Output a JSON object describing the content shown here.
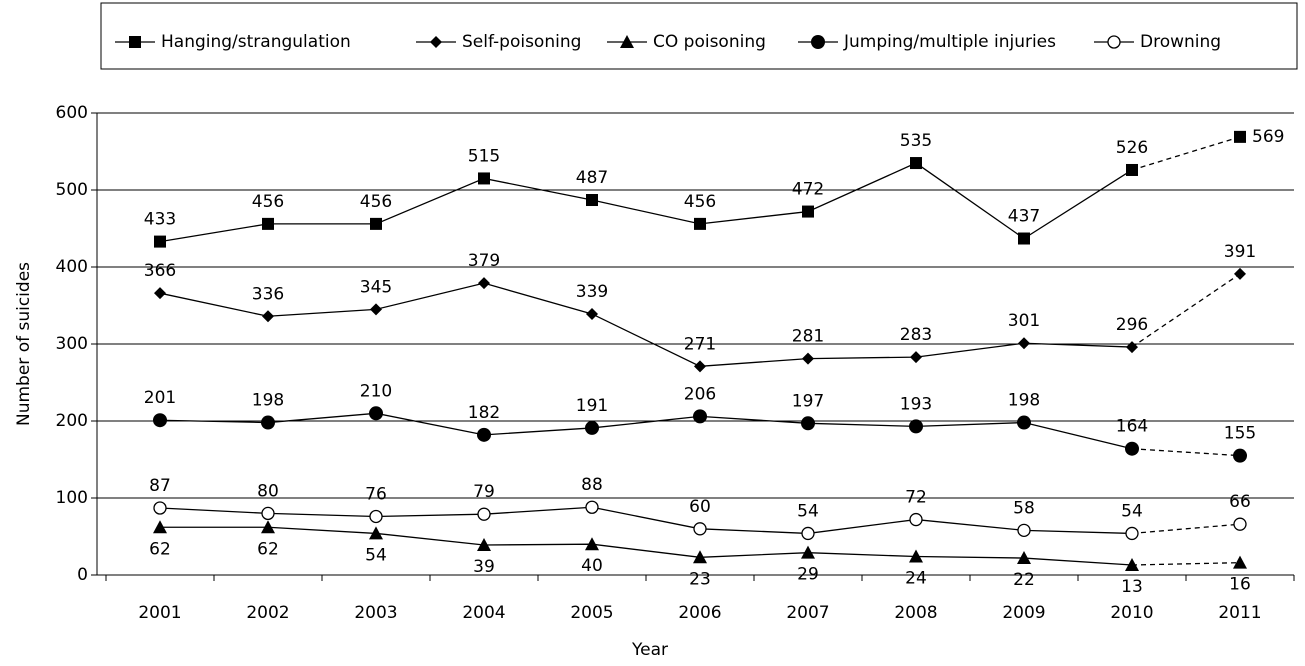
{
  "chart_data": {
    "type": "line",
    "x_label": "Year",
    "y_label": "Number of suicides",
    "categories": [
      "2001",
      "2002",
      "2003",
      "2004",
      "2005",
      "2006",
      "2007",
      "2008",
      "2009",
      "2010",
      "2011"
    ],
    "series": [
      {
        "name": "Hanging/strangulation",
        "color": "#000000",
        "marker": "square",
        "values": [
          433,
          456,
          456,
          515,
          487,
          456,
          472,
          535,
          437,
          526,
          569
        ]
      },
      {
        "name": "Self-poisoning",
        "color": "#000000",
        "marker": "diamond",
        "values": [
          366,
          336,
          345,
          379,
          339,
          271,
          281,
          283,
          301,
          296,
          391
        ]
      },
      {
        "name": "CO poisoning",
        "color": "#000000",
        "marker": "triangle",
        "values": [
          62,
          62,
          54,
          39,
          40,
          23,
          29,
          24,
          22,
          13,
          16
        ]
      },
      {
        "name": "Jumping/multiple injuries",
        "color": "#000000",
        "marker": "circle",
        "values": [
          201,
          198,
          210,
          182,
          191,
          206,
          197,
          193,
          198,
          164,
          155
        ]
      },
      {
        "name": "Drowning",
        "color": "#000000",
        "marker": "open-circle",
        "values": [
          87,
          80,
          76,
          79,
          88,
          60,
          54,
          72,
          58,
          54,
          66
        ]
      }
    ],
    "ylim": [
      0,
      600
    ],
    "yticks": [
      0,
      100,
      200,
      300,
      400,
      500,
      600
    ],
    "grid": true,
    "legend": "top"
  }
}
